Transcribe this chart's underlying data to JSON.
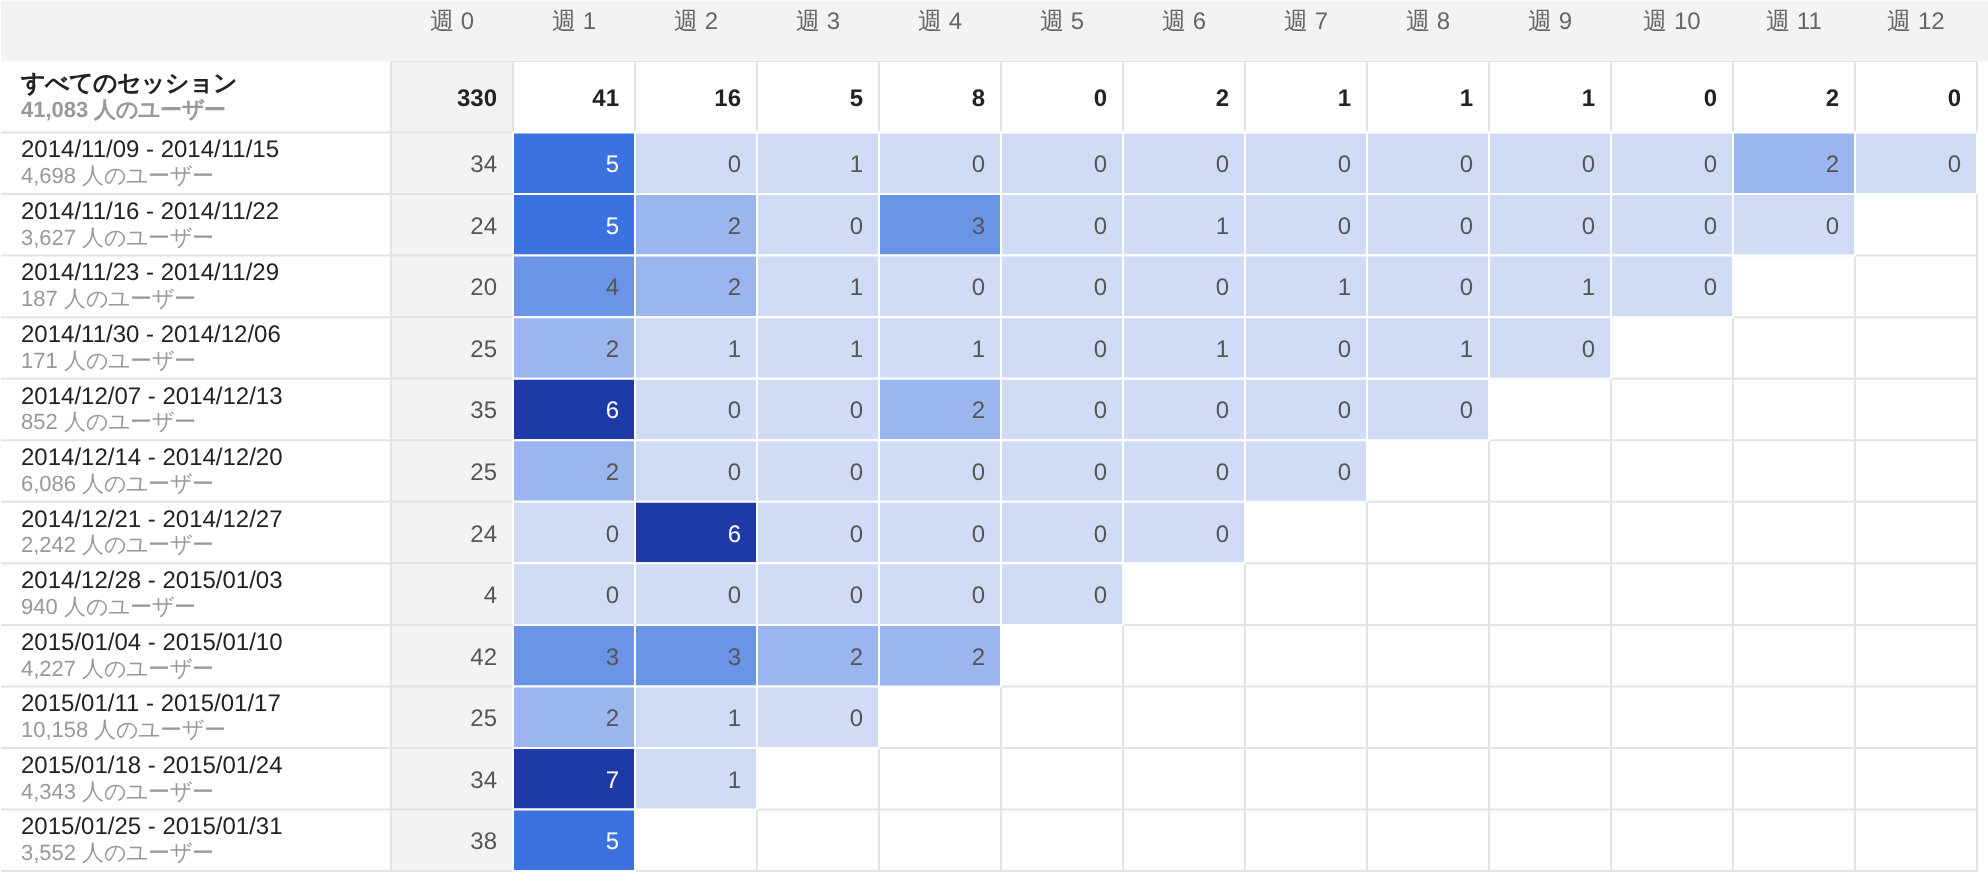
{
  "chart_data": {
    "type": "heatmap",
    "categories": [
      "週 0",
      "週 1",
      "週 2",
      "週 3",
      "週 4",
      "週 5",
      "週 6",
      "週 7",
      "週 8",
      "週 9",
      "週 10",
      "週 11",
      "週 12"
    ],
    "y_categories": [
      "すべてのセッション\n41,083 人のユーザー",
      "2014/11/09 - 2014/11/15\n4,698 人のユーザー",
      "2014/11/16 - 2014/11/22\n3,627 人のユーザー",
      "2014/11/23 - 2014/11/29\n187 人のユーザー",
      "2014/11/30 - 2014/12/06\n171 人のユーザー",
      "2014/12/07 - 2014/12/13\n852 人のユーザー",
      "2014/12/14 - 2014/12/20\n6,086 人のユーザー",
      "2014/12/21 - 2014/12/27\n2,242 人のユーザー",
      "2014/12/28 - 2015/01/03\n940 人のユーザー",
      "2015/01/04 - 2015/01/10\n4,227 人のユーザー",
      "2015/01/11 - 2015/01/17\n10,158 人のユーザー",
      "2015/01/18 - 2015/01/24\n4,343 人のユーザー",
      "2015/01/25 - 2015/01/31\n3,552 人のユーザー"
    ],
    "cells": [
      [
        330,
        41,
        16,
        5,
        8,
        0,
        2,
        1,
        1,
        1,
        0,
        2,
        0
      ],
      [
        34,
        5,
        0,
        1,
        0,
        0,
        0,
        0,
        0,
        0,
        0,
        2,
        0
      ],
      [
        24,
        5,
        2,
        0,
        3,
        0,
        1,
        0,
        0,
        0,
        0,
        0,
        null
      ],
      [
        20,
        4,
        2,
        1,
        0,
        0,
        0,
        1,
        0,
        1,
        0,
        null,
        null
      ],
      [
        25,
        2,
        1,
        1,
        1,
        0,
        1,
        0,
        1,
        0,
        null,
        null,
        null
      ],
      [
        35,
        6,
        0,
        0,
        2,
        0,
        0,
        0,
        0,
        null,
        null,
        null,
        null
      ],
      [
        25,
        2,
        0,
        0,
        0,
        0,
        0,
        0,
        null,
        null,
        null,
        null,
        null
      ],
      [
        24,
        0,
        6,
        0,
        0,
        0,
        0,
        null,
        null,
        null,
        null,
        null,
        null
      ],
      [
        4,
        0,
        0,
        0,
        0,
        0,
        null,
        null,
        null,
        null,
        null,
        null,
        null
      ],
      [
        42,
        3,
        3,
        2,
        2,
        null,
        null,
        null,
        null,
        null,
        null,
        null,
        null
      ],
      [
        25,
        2,
        1,
        0,
        null,
        null,
        null,
        null,
        null,
        null,
        null,
        null,
        null
      ],
      [
        34,
        7,
        1,
        null,
        null,
        null,
        null,
        null,
        null,
        null,
        null,
        null,
        null
      ],
      [
        38,
        5,
        null,
        null,
        null,
        null,
        null,
        null,
        null,
        null,
        null,
        null,
        null
      ]
    ],
    "colors": [
      "#d0dcf5",
      "#9bb6ee",
      "#6a94e6",
      "#3b72df",
      "#1d3aa8"
    ],
    "data_labels": true
  }
}
